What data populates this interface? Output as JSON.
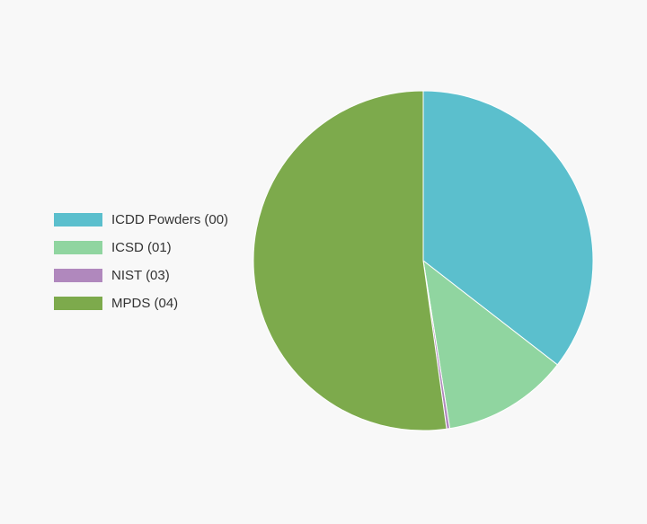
{
  "chart_data": {
    "type": "pie",
    "title": "",
    "legend_position": "left",
    "slices": [
      {
        "label": "ICDD Powders (00)",
        "value": 35.5,
        "color": "#5bbfcd"
      },
      {
        "label": "ICSD (01)",
        "value": 12.0,
        "color": "#90d5a0"
      },
      {
        "label": "NIST (03)",
        "value": 0.3,
        "color": "#b088bd"
      },
      {
        "label": "MPDS (04)",
        "value": 52.2,
        "color": "#7daa4c"
      }
    ]
  }
}
